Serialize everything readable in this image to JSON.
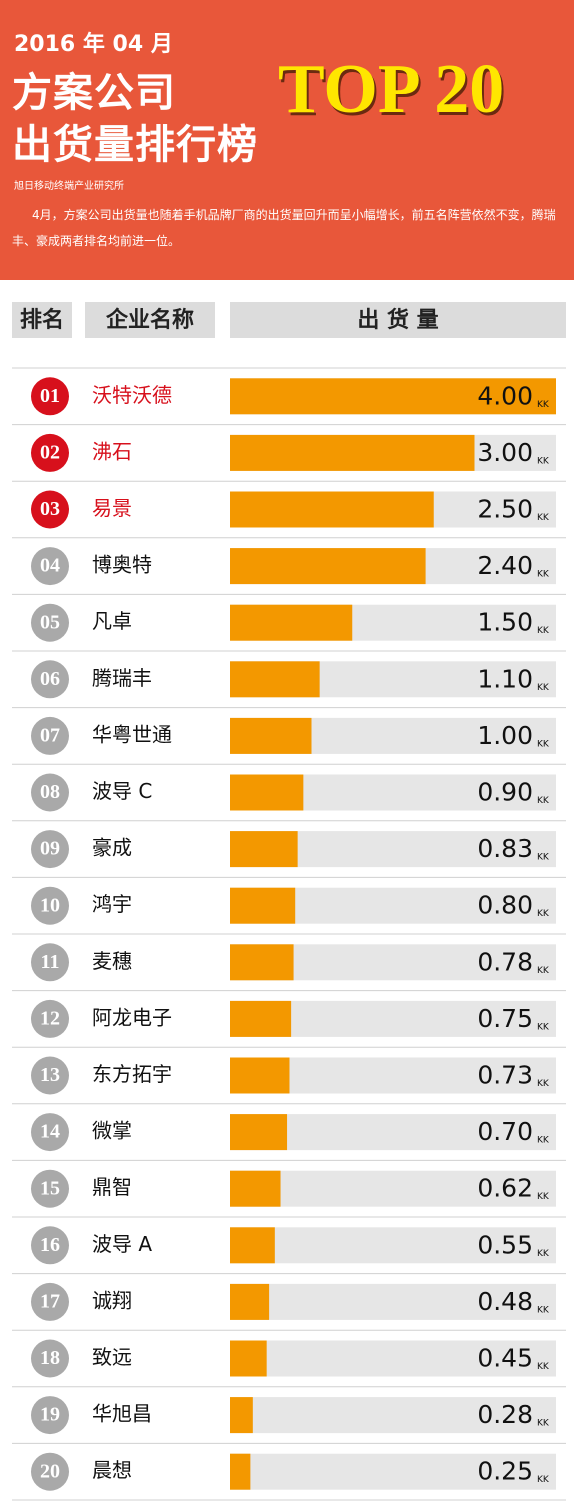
{
  "header": {
    "date": "2016 年 04 月",
    "title_line1": "方案公司",
    "title_line2": "出货量排行榜",
    "badge": "TOP 20",
    "source": "旭日移动终端产业研究所",
    "description": "4月，方案公司出货量也随着手机品牌厂商的出货量回升而呈小幅增长，前五名阵营依然不变，腾瑞丰、豪成两者排名均前进一位。"
  },
  "chart_data": {
    "type": "bar",
    "orientation": "horizontal",
    "column_headers": [
      "排名",
      "企业名称",
      "出 货 量"
    ],
    "ranks": [
      "01",
      "02",
      "03",
      "04",
      "05",
      "06",
      "07",
      "08",
      "09",
      "10",
      "11",
      "12",
      "13",
      "14",
      "15",
      "16",
      "17",
      "18",
      "19",
      "20"
    ],
    "categories": [
      "沃特沃德",
      "沸石",
      "易景",
      "博奥特",
      "凡卓",
      "腾瑞丰",
      "华粤世通",
      "波导 C",
      "豪成",
      "鸿宇",
      "麦穗",
      "阿龙电子",
      "东方拓宇",
      "微掌",
      "鼎智",
      "波导 A",
      "诚翔",
      "致远",
      "华旭昌",
      "晨想"
    ],
    "values": [
      4,
      3,
      2.5,
      2.4,
      1.5,
      1.1,
      1,
      0.9,
      0.83,
      0.8,
      0.78,
      0.75,
      0.73,
      0.7,
      0.62,
      0.55,
      0.48,
      0.45,
      0.28,
      0.25
    ],
    "value_labels": [
      "4.00",
      "3.00",
      "2.50",
      "2.40",
      "1.50",
      "1.10",
      "1.00",
      "0.90",
      "0.83",
      "0.80",
      "0.78",
      "0.75",
      "0.73",
      "0.70",
      "0.62",
      "0.55",
      "0.48",
      "0.45",
      "0.28",
      "0.25"
    ],
    "unit": "KK",
    "color": "#f39800",
    "highlight_color": "#d7101c",
    "highlight_count": 3
  }
}
